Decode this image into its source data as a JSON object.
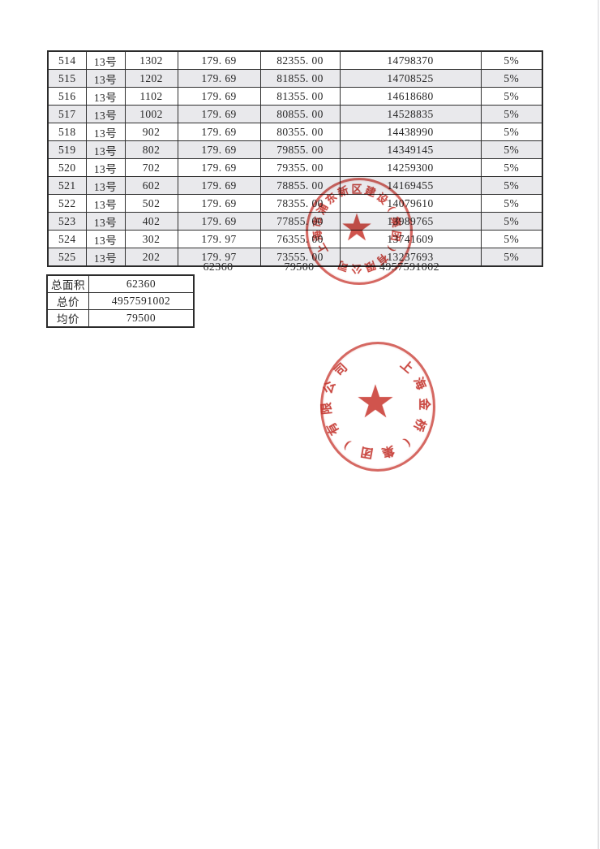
{
  "table": {
    "rows": [
      [
        "514",
        "13号",
        "1302",
        "179. 69",
        "82355. 00",
        "14798370",
        "5%"
      ],
      [
        "515",
        "13号",
        "1202",
        "179. 69",
        "81855. 00",
        "14708525",
        "5%"
      ],
      [
        "516",
        "13号",
        "1102",
        "179. 69",
        "81355. 00",
        "14618680",
        "5%"
      ],
      [
        "517",
        "13号",
        "1002",
        "179. 69",
        "80855. 00",
        "14528835",
        "5%"
      ],
      [
        "518",
        "13号",
        "902",
        "179. 69",
        "80355. 00",
        "14438990",
        "5%"
      ],
      [
        "519",
        "13号",
        "802",
        "179. 69",
        "79855. 00",
        "14349145",
        "5%"
      ],
      [
        "520",
        "13号",
        "702",
        "179. 69",
        "79355. 00",
        "14259300",
        "5%"
      ],
      [
        "521",
        "13号",
        "602",
        "179. 69",
        "78855. 00",
        "14169455",
        "5%"
      ],
      [
        "522",
        "13号",
        "502",
        "179. 69",
        "78355. 00",
        "14079610",
        "5%"
      ],
      [
        "523",
        "13号",
        "402",
        "179. 69",
        "77855. 00",
        "13989765",
        "5%"
      ],
      [
        "524",
        "13号",
        "302",
        "179. 97",
        "76355. 00",
        "13741609",
        "5%"
      ],
      [
        "525",
        "13号",
        "202",
        "179. 97",
        "73555. 00",
        "13237693",
        "5%"
      ]
    ]
  },
  "totals": {
    "area": "62360",
    "avg_price": "79500",
    "total_price": "4957591002"
  },
  "summary": {
    "rows": [
      {
        "label": "总面积",
        "value": "62360"
      },
      {
        "label": "总价",
        "value": "4957591002"
      },
      {
        "label": "均价",
        "value": "79500"
      }
    ]
  },
  "stamps": [
    {
      "name": "construction-company-seal",
      "text": "上海市浦东新区建设(集团)有限公司",
      "star": "★"
    },
    {
      "name": "jinqiao-group-seal",
      "text": "上海金桥(集团)有限公司",
      "star": "★"
    }
  ],
  "colors": {
    "seal_red": "#c93e36",
    "row_alt": "#e9e9ec",
    "table_border": "#2f2f2f",
    "text": "#262626"
  }
}
